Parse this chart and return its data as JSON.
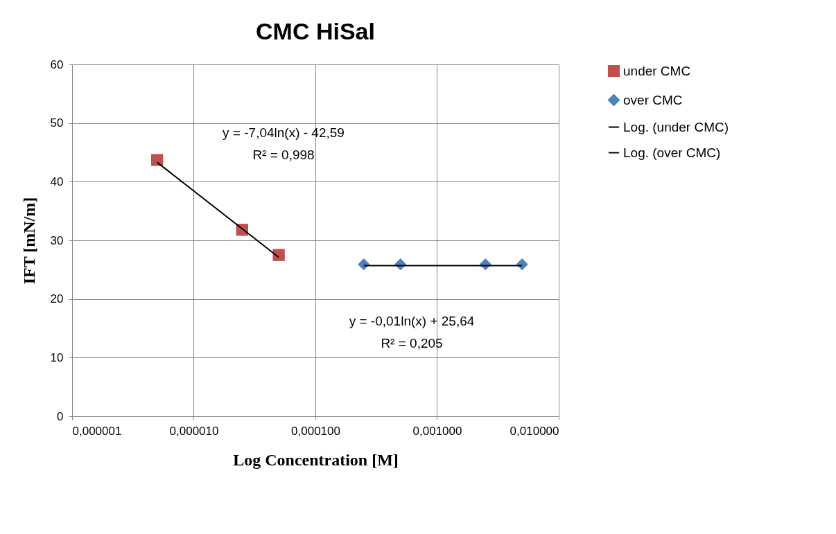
{
  "chart_data": {
    "type": "scatter",
    "title": "CMC HiSal",
    "xlabel": "Log Concentration [M]",
    "ylabel": "IFT [mN/m]",
    "log": "x",
    "grid": true,
    "legend": "right",
    "xlim": [
      1e-06,
      0.01
    ],
    "xticks": [
      {
        "value": 1e-06,
        "label": "0,000001"
      },
      {
        "value": 1e-05,
        "label": "0,000010"
      },
      {
        "value": 0.0001,
        "label": "0,000100"
      },
      {
        "value": 0.001,
        "label": "0,001000"
      },
      {
        "value": 0.01,
        "label": "0,010000"
      }
    ],
    "ylim": [
      0,
      60
    ],
    "yticks": [
      0,
      10,
      20,
      30,
      40,
      50,
      60
    ],
    "series": [
      {
        "name": "under CMC",
        "type": "scatter",
        "marker": "square",
        "color": "#c0504d",
        "x": [
          5e-06,
          2.5e-05,
          5e-05
        ],
        "values": [
          43.7,
          31.8,
          27.5
        ]
      },
      {
        "name": "over CMC",
        "type": "scatter",
        "marker": "diamond",
        "color": "#4f81bd",
        "x": [
          0.00025,
          0.0005,
          0.0025,
          0.005
        ],
        "values": [
          25.9,
          25.9,
          25.9,
          25.9
        ]
      },
      {
        "name": "Log. (under CMC)",
        "type": "line",
        "line_style": "solid",
        "color": "#000000",
        "x": [
          5e-06,
          5e-05
        ],
        "values": [
          43.3,
          27.1
        ]
      },
      {
        "name": "Log. (over CMC)",
        "type": "line",
        "line_style": "solid",
        "color": "#000000",
        "x": [
          0.00025,
          0.005
        ],
        "values": [
          25.7,
          25.7
        ]
      }
    ],
    "annotations": [
      "y = -7,04ln(x) - 42,59",
      "R² = 0,998",
      "y = -0,01ln(x) + 25,64",
      "R² = 0,205"
    ]
  }
}
